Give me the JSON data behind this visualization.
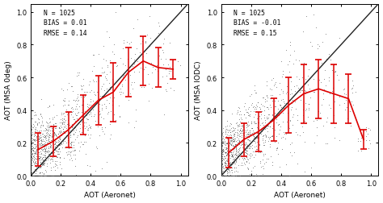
{
  "panel1": {
    "xlabel": "AOT (Aeronet)",
    "ylabel": "AOT (MSA 0deg)",
    "stats_text": "N = 1025\nBIAS = 0.01\nRMSE = 0.14",
    "xlim": [
      0.0,
      1.05
    ],
    "ylim": [
      0.0,
      1.05
    ],
    "xticks": [
      0.0,
      0.2,
      0.4,
      0.6,
      0.8,
      1.0
    ],
    "yticks": [
      0.0,
      0.2,
      0.4,
      0.6,
      0.8,
      1.0
    ],
    "bin_centers": [
      0.05,
      0.15,
      0.25,
      0.35,
      0.45,
      0.55,
      0.65,
      0.75,
      0.85,
      0.95
    ],
    "bin_means": [
      0.16,
      0.21,
      0.28,
      0.37,
      0.46,
      0.51,
      0.63,
      0.7,
      0.66,
      0.65
    ],
    "bin_stds": [
      0.1,
      0.09,
      0.11,
      0.12,
      0.15,
      0.18,
      0.15,
      0.15,
      0.12,
      0.06
    ],
    "scatter_color": "#444444",
    "line_color": "#dd0000",
    "diag_color": "#222222"
  },
  "panel2": {
    "xlabel": "AOT (Aeronet)",
    "ylabel": "AOT (MSA IODC)",
    "stats_text": "N = 1025\nBIAS = -0.01\nRMSE = 0.15",
    "xlim": [
      0.0,
      1.05
    ],
    "ylim": [
      0.0,
      1.05
    ],
    "xticks": [
      0.0,
      0.2,
      0.4,
      0.6,
      0.8,
      1.0
    ],
    "yticks": [
      0.0,
      0.2,
      0.4,
      0.6,
      0.8,
      1.0
    ],
    "bin_centers": [
      0.05,
      0.15,
      0.25,
      0.35,
      0.45,
      0.55,
      0.65,
      0.75,
      0.85,
      0.95
    ],
    "bin_means": [
      0.14,
      0.22,
      0.27,
      0.34,
      0.43,
      0.5,
      0.53,
      0.5,
      0.47,
      0.22
    ],
    "bin_stds": [
      0.09,
      0.1,
      0.12,
      0.13,
      0.17,
      0.18,
      0.18,
      0.18,
      0.15,
      0.06
    ],
    "scatter_color": "#444444",
    "line_color": "#dd0000",
    "diag_color": "#222222"
  },
  "background_color": "#ffffff",
  "seed": 42,
  "n_points": 1025
}
